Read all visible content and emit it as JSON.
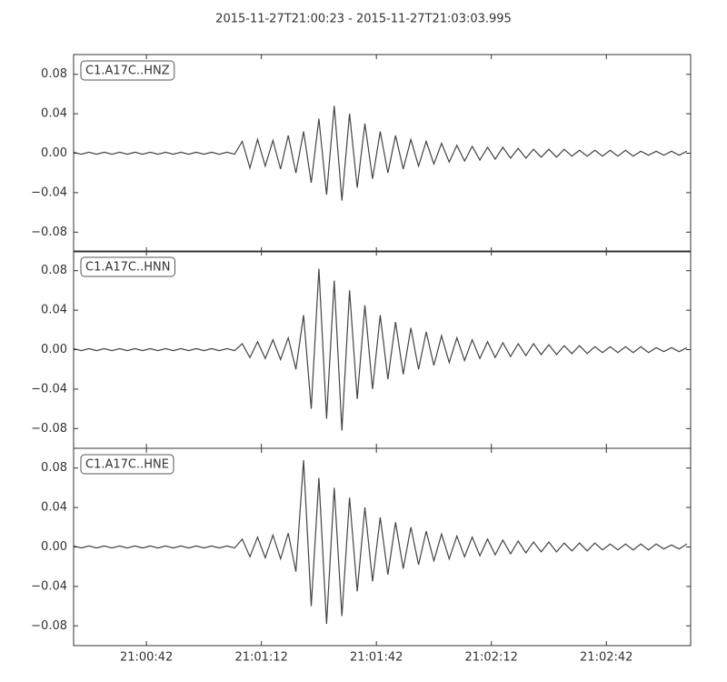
{
  "chart_data": {
    "type": "line",
    "title": "2015-11-27T21:00:23  -  2015-11-27T21:03:03.995",
    "color": "#444444",
    "xlim": [
      "21:00:23",
      "21:03:03.995"
    ],
    "xticks": [
      "21:00:42",
      "21:01:12",
      "21:01:42",
      "21:02:12",
      "21:02:42"
    ],
    "x": [
      "21:00:23",
      "21:00:25",
      "21:00:27",
      "21:00:29",
      "21:00:31",
      "21:00:33",
      "21:00:35",
      "21:00:37",
      "21:00:39",
      "21:00:41",
      "21:00:43",
      "21:00:45",
      "21:00:47",
      "21:00:49",
      "21:00:51",
      "21:00:53",
      "21:00:55",
      "21:00:57",
      "21:00:59",
      "21:01:01",
      "21:01:03",
      "21:01:05",
      "21:01:07",
      "21:01:09",
      "21:01:11",
      "21:01:13",
      "21:01:15",
      "21:01:17",
      "21:01:19",
      "21:01:21",
      "21:01:23",
      "21:01:25",
      "21:01:27",
      "21:01:29",
      "21:01:31",
      "21:01:33",
      "21:01:35",
      "21:01:37",
      "21:01:39",
      "21:01:41",
      "21:01:43",
      "21:01:45",
      "21:01:47",
      "21:01:49",
      "21:01:51",
      "21:01:53",
      "21:01:55",
      "21:01:57",
      "21:01:59",
      "21:02:01",
      "21:02:03",
      "21:02:05",
      "21:02:07",
      "21:02:09",
      "21:02:11",
      "21:02:13",
      "21:02:15",
      "21:02:17",
      "21:02:19",
      "21:02:21",
      "21:02:23",
      "21:02:25",
      "21:02:27",
      "21:02:29",
      "21:02:31",
      "21:02:33",
      "21:02:35",
      "21:02:37",
      "21:02:39",
      "21:02:41",
      "21:02:43",
      "21:02:45",
      "21:02:47",
      "21:02:49",
      "21:02:51",
      "21:02:53",
      "21:02:55",
      "21:02:57",
      "21:02:59",
      "21:03:01",
      "21:03:03"
    ],
    "panels": [
      {
        "label": "C1.A17C..HNZ",
        "ylim": [
          -0.1,
          0.1
        ],
        "yticks": [
          {
            "value": -0.08,
            "label": "−0.08"
          },
          {
            "value": -0.04,
            "label": "−0.04"
          },
          {
            "value": 0,
            "label": "0.00"
          },
          0.04,
          0.08
        ],
        "values": [
          0.001,
          -0.001,
          0.001,
          -0.001,
          0.001,
          -0.001,
          0.001,
          -0.001,
          0.001,
          -0.001,
          0.001,
          -0.001,
          0.001,
          -0.001,
          0.001,
          -0.001,
          0.001,
          -0.001,
          0.001,
          -0.001,
          0.001,
          -0.001,
          0.012,
          -0.015,
          0.014,
          -0.013,
          0.013,
          -0.016,
          0.018,
          -0.02,
          0.022,
          -0.03,
          0.035,
          -0.042,
          0.048,
          -0.048,
          0.04,
          -0.035,
          0.03,
          -0.026,
          0.022,
          -0.02,
          0.018,
          -0.016,
          0.014,
          -0.013,
          0.012,
          -0.011,
          0.01,
          -0.009,
          0.008,
          -0.008,
          0.007,
          -0.007,
          0.006,
          -0.006,
          0.006,
          -0.005,
          0.005,
          -0.005,
          0.004,
          -0.004,
          0.004,
          -0.004,
          0.004,
          -0.003,
          0.003,
          -0.003,
          0.003,
          -0.003,
          0.003,
          -0.003,
          0.003,
          -0.003,
          0.002,
          -0.002,
          0.002,
          -0.002,
          0.002,
          -0.002,
          0.002
        ]
      },
      {
        "label": "C1.A17C..HNN",
        "ylim": [
          -0.1,
          0.1
        ],
        "yticks": [
          {
            "value": -0.08,
            "label": "−0.08"
          },
          {
            "value": -0.04,
            "label": "−0.04"
          },
          {
            "value": 0,
            "label": "0.00"
          },
          0.04,
          0.08
        ],
        "values": [
          0.001,
          -0.001,
          0.001,
          -0.001,
          0.001,
          -0.001,
          0.001,
          -0.001,
          0.001,
          -0.001,
          0.001,
          -0.001,
          0.001,
          -0.001,
          0.001,
          -0.001,
          0.001,
          -0.001,
          0.001,
          -0.001,
          0.001,
          -0.001,
          0.006,
          -0.008,
          0.008,
          -0.009,
          0.01,
          -0.01,
          0.012,
          -0.02,
          0.035,
          -0.06,
          0.082,
          -0.07,
          0.07,
          -0.082,
          0.06,
          -0.05,
          0.045,
          -0.04,
          0.035,
          -0.03,
          0.028,
          -0.025,
          0.022,
          -0.02,
          0.018,
          -0.016,
          0.014,
          -0.013,
          0.012,
          -0.011,
          0.01,
          -0.009,
          0.008,
          -0.008,
          0.007,
          -0.007,
          0.006,
          -0.006,
          0.006,
          -0.005,
          0.005,
          -0.005,
          0.004,
          -0.004,
          0.004,
          -0.004,
          0.003,
          -0.003,
          0.003,
          -0.003,
          0.003,
          -0.003,
          0.003,
          -0.003,
          0.002,
          -0.002,
          0.002,
          -0.002,
          0.002
        ]
      },
      {
        "label": "C1.A17C..HNE",
        "ylim": [
          -0.1,
          0.1
        ],
        "yticks": [
          {
            "value": -0.08,
            "label": "−0.08"
          },
          {
            "value": -0.04,
            "label": "−0.04"
          },
          {
            "value": 0,
            "label": "0.00"
          },
          0.04,
          0.08
        ],
        "values": [
          0.001,
          -0.001,
          0.001,
          -0.001,
          0.001,
          -0.001,
          0.001,
          -0.001,
          0.001,
          -0.001,
          0.001,
          -0.001,
          0.001,
          -0.001,
          0.001,
          -0.001,
          0.001,
          -0.001,
          0.001,
          -0.001,
          0.001,
          -0.001,
          0.008,
          -0.01,
          0.01,
          -0.011,
          0.012,
          -0.012,
          0.014,
          -0.025,
          0.088,
          -0.06,
          0.07,
          -0.078,
          0.06,
          -0.07,
          0.05,
          -0.045,
          0.04,
          -0.035,
          0.03,
          -0.028,
          0.025,
          -0.022,
          0.02,
          -0.018,
          0.016,
          -0.014,
          0.013,
          -0.012,
          0.011,
          -0.01,
          0.01,
          -0.009,
          0.008,
          -0.008,
          0.007,
          -0.007,
          0.006,
          -0.006,
          0.005,
          -0.005,
          0.005,
          -0.005,
          0.004,
          -0.004,
          0.004,
          -0.004,
          0.004,
          -0.003,
          0.003,
          -0.003,
          0.003,
          -0.003,
          0.003,
          -0.003,
          0.003,
          -0.002,
          0.002,
          -0.002,
          0.003
        ]
      }
    ]
  }
}
